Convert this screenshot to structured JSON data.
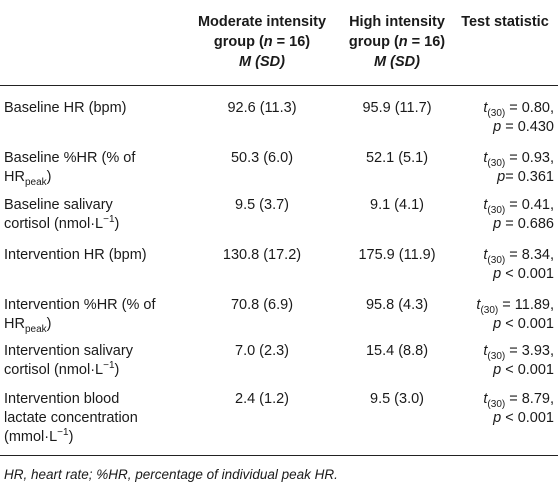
{
  "header": {
    "moderate": {
      "line1": "Moderate intensity",
      "line2_pre": "group (",
      "n_label": "n",
      "n_eq": " = 16)",
      "line3": "M (SD)"
    },
    "high": {
      "line1": "High intensity",
      "line2_pre": "group (",
      "n_label": "n",
      "n_eq": " = 16)",
      "line3": "M (SD)"
    },
    "test": "Test statistic"
  },
  "rows": [
    {
      "label": [
        "Baseline HR (bpm)"
      ],
      "moderate": "92.6 (11.3)",
      "high": "95.9 (11.7)",
      "t": "= 0.80,",
      "p": "= 0.430"
    },
    {
      "label": [
        "Baseline %HR (% of",
        "HR",
        "peak",
        ")"
      ],
      "moderate": "50.3 (6.0)",
      "high": "52.1 (5.1)",
      "t": "= 0.93,",
      "p": "= 0.361"
    },
    {
      "label": [
        "Baseline salivary",
        "cortisol (nmol·L",
        "−1",
        ")"
      ],
      "moderate": "9.5 (3.7)",
      "high": "9.1 (4.1)",
      "t": "= 0.41,",
      "p": "= 0.686"
    },
    {
      "label": [
        "Intervention HR (bpm)"
      ],
      "moderate": "130.8 (17.2)",
      "high": "175.9 (11.9)",
      "t": "= 8.34,",
      "p": "< 0.001"
    },
    {
      "label": [
        "Intervention %HR (% of",
        "HR",
        "peak",
        ")"
      ],
      "moderate": "70.8 (6.9)",
      "high": "95.8 (4.3)",
      "t": "= 11.89,",
      "p": "< 0.001"
    },
    {
      "label": [
        "Intervention salivary",
        "cortisol (nmol·L",
        "−1",
        ")"
      ],
      "moderate": "7.0 (2.3)",
      "high": "15.4 (8.8)",
      "t": "= 3.93,",
      "p": "< 0.001"
    },
    {
      "label": [
        "Intervention blood",
        "lactate concentration",
        "(mmol·L",
        "−1",
        ")"
      ],
      "moderate": "2.4 (1.2)",
      "high": "9.5 (3.0)",
      "t": "= 8.79,",
      "p": "< 0.001"
    }
  ],
  "stat": {
    "t_symbol": "t",
    "df": "(30)",
    "p_symbol": "p"
  },
  "footnote": "HR, heart rate; %HR, percentage of individual peak HR."
}
